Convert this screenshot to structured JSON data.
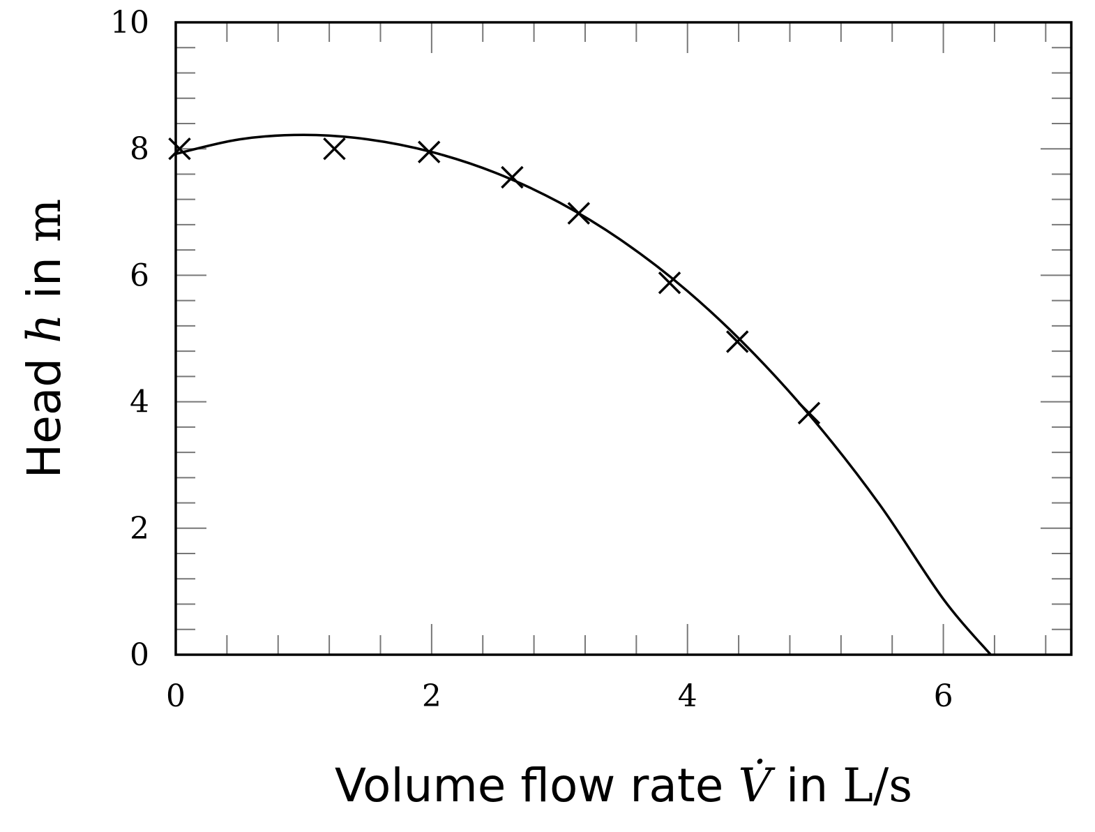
{
  "chart_data": {
    "type": "scatter",
    "xlabel": "Volume flow rate V̇ in L/s",
    "ylabel": "Head h in m",
    "xlim": [
      0,
      7
    ],
    "ylim": [
      0,
      10
    ],
    "xticks": [
      0,
      2,
      4,
      6
    ],
    "yticks": [
      0,
      2,
      4,
      6,
      8,
      10
    ],
    "grid": false,
    "series": [
      {
        "marker": "x",
        "x": [
          0.03,
          1.24,
          1.98,
          2.63,
          3.15,
          3.86,
          4.39,
          4.95
        ],
        "y": [
          8.0,
          8.0,
          7.95,
          7.55,
          6.98,
          5.88,
          4.95,
          3.82
        ]
      },
      {
        "line": "fit",
        "x": [
          0.0,
          0.5,
          1.0,
          1.5,
          2.0,
          2.5,
          3.0,
          3.5,
          4.0,
          4.5,
          5.0,
          5.5,
          6.0,
          6.37
        ],
        "y": [
          7.92,
          8.15,
          8.22,
          8.15,
          7.95,
          7.62,
          7.15,
          6.53,
          5.75,
          4.8,
          3.68,
          2.38,
          0.88,
          0.0
        ]
      }
    ]
  }
}
